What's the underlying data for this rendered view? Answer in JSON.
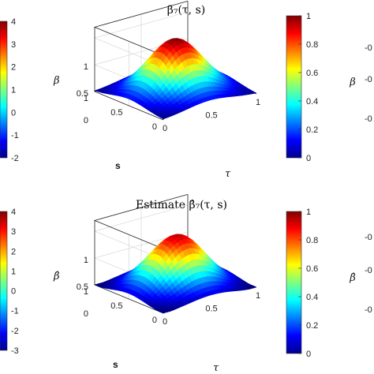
{
  "chart_data": [
    {
      "type": "surface",
      "title": "β₇(τ, s)",
      "zlabel": "β",
      "xlabel": "τ",
      "ylabel": "s",
      "xticks": [
        "0",
        "0.5",
        "1"
      ],
      "yticks": [
        "0",
        "0.5",
        "1"
      ],
      "zticks": [
        "0",
        "0.5",
        "1"
      ],
      "zlim": [
        0,
        1.2
      ],
      "peak": 1.0,
      "edge_min": 0.05,
      "colorbar": {
        "min": 0,
        "max": 1,
        "ticks": [
          "0",
          "0.2",
          "0.4",
          "0.6",
          "0.8",
          "1"
        ]
      }
    },
    {
      "type": "surface",
      "title": "Estimate β̂₇(τ, s)",
      "zlabel": "β̂",
      "xlabel": "τ",
      "ylabel": "s",
      "xticks": [
        "0",
        "0.5",
        "1"
      ],
      "yticks": [
        "0",
        "0.5",
        "1"
      ],
      "zticks": [
        "0",
        "0.5",
        "1"
      ],
      "zlim": [
        0,
        1.2
      ],
      "peak": 1.0,
      "edge_min": 0.0,
      "colorbar": {
        "min": 0,
        "max": 1,
        "ticks": [
          "0",
          "0.2",
          "0.4",
          "0.6",
          "0.8",
          "1"
        ]
      }
    }
  ],
  "left_colorbars": [
    {
      "ticks": [
        "4",
        "3",
        "2",
        "1",
        "0",
        "-1",
        "-2"
      ]
    },
    {
      "ticks": [
        "4",
        "3",
        "2",
        "1",
        "0",
        "-1",
        "-2",
        "-3"
      ]
    }
  ],
  "right_partial": [
    {
      "ylabel": "β",
      "ticks": [
        "-0",
        "-0",
        "-0"
      ]
    },
    {
      "ylabel": "β̂",
      "ticks": [
        "-0",
        "-0",
        "-0"
      ]
    }
  ],
  "colors": {
    "jet_low": "#00008f",
    "jet_mid": "#7fff7f",
    "jet_high": "#800000"
  }
}
